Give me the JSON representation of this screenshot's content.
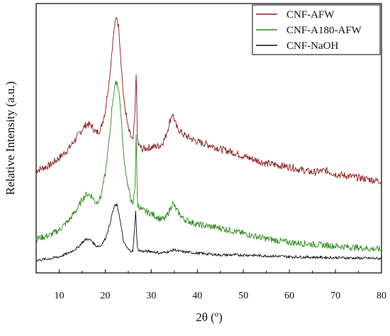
{
  "chart_data": {
    "type": "line",
    "title": "",
    "xlabel": "2θ (º)",
    "ylabel": "Relative Intensity (a.u.)",
    "xlim": [
      5,
      80
    ],
    "x_ticks": [
      "10",
      "20",
      "30",
      "40",
      "50",
      "60",
      "70",
      "80"
    ],
    "y_ticks_labeled": false,
    "grid": false,
    "legend": "top-right",
    "series": [
      {
        "name": "CNF-AFW",
        "color": "#8b1a1a",
        "x": [
          5,
          8,
          10,
          12,
          14,
          15,
          16,
          17,
          18,
          19,
          20,
          21,
          21.5,
          22,
          22.5,
          23,
          23.5,
          24,
          25,
          26,
          26.5,
          26.7,
          27,
          28,
          30,
          32,
          33,
          34,
          34.6,
          35.5,
          37,
          40,
          43,
          45,
          48,
          50,
          55,
          60,
          65,
          68,
          70,
          75,
          80
        ],
        "y": [
          0.52,
          0.55,
          0.59,
          0.64,
          0.71,
          0.75,
          0.78,
          0.77,
          0.73,
          0.75,
          0.85,
          1.05,
          1.2,
          1.32,
          1.38,
          1.3,
          1.1,
          0.92,
          0.75,
          0.68,
          0.85,
          1.1,
          0.67,
          0.64,
          0.65,
          0.66,
          0.7,
          0.79,
          0.84,
          0.76,
          0.72,
          0.68,
          0.66,
          0.64,
          0.62,
          0.6,
          0.56,
          0.54,
          0.51,
          0.52,
          0.5,
          0.48,
          0.46
        ]
      },
      {
        "name": "CNF-A180-AFW",
        "color": "#2e8b1a",
        "x": [
          5,
          8,
          10,
          12,
          14,
          15,
          16,
          17,
          18,
          19,
          20,
          21,
          21.5,
          22,
          22.5,
          23,
          23.5,
          24,
          25,
          26,
          26.5,
          26.7,
          27,
          28,
          30,
          32,
          33,
          34,
          34.6,
          35.5,
          37,
          40,
          45,
          50,
          55,
          60,
          65,
          70,
          75,
          80
        ],
        "y": [
          0.14,
          0.16,
          0.19,
          0.24,
          0.31,
          0.36,
          0.39,
          0.38,
          0.34,
          0.37,
          0.5,
          0.72,
          0.88,
          0.98,
          1.02,
          0.96,
          0.8,
          0.6,
          0.42,
          0.32,
          0.44,
          0.75,
          0.33,
          0.3,
          0.28,
          0.25,
          0.25,
          0.3,
          0.34,
          0.3,
          0.25,
          0.22,
          0.2,
          0.17,
          0.14,
          0.12,
          0.11,
          0.1,
          0.09,
          0.08
        ]
      },
      {
        "name": "CNF-NaOH",
        "color": "#111111",
        "x": [
          5,
          8,
          10,
          12,
          14,
          15,
          16,
          17,
          18,
          19,
          20,
          21,
          21.5,
          22,
          22.5,
          23,
          23.5,
          24,
          25,
          26,
          26.4,
          26.6,
          27,
          28,
          30,
          32,
          34,
          35,
          36,
          40,
          45,
          50,
          60,
          70,
          80
        ],
        "y": [
          0.02,
          0.03,
          0.04,
          0.06,
          0.09,
          0.12,
          0.14,
          0.13,
          0.1,
          0.1,
          0.14,
          0.22,
          0.28,
          0.32,
          0.33,
          0.28,
          0.2,
          0.12,
          0.08,
          0.07,
          0.2,
          0.3,
          0.08,
          0.07,
          0.07,
          0.06,
          0.07,
          0.08,
          0.07,
          0.06,
          0.05,
          0.05,
          0.04,
          0.035,
          0.03
        ]
      }
    ]
  }
}
